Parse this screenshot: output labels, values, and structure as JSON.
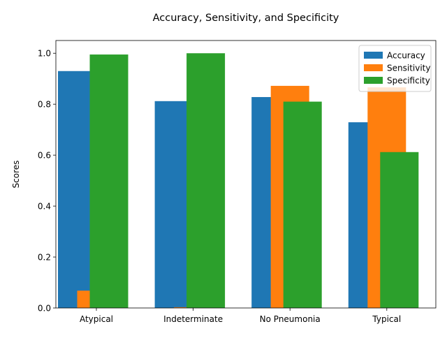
{
  "chart_data": {
    "type": "bar",
    "title": "Accuracy, Sensitivity, and Specificity",
    "xlabel": "",
    "ylabel": "Scores",
    "categories": [
      "Atypical",
      "Indeterminate",
      "No Pneumonia",
      "Typical"
    ],
    "series": [
      {
        "name": "Accuracy",
        "color": "#1f77b4",
        "values": [
          0.93,
          0.812,
          0.828,
          0.729
        ]
      },
      {
        "name": "Sensitivity",
        "color": "#ff7f0e",
        "values": [
          0.068,
          0.003,
          0.872,
          0.866
        ]
      },
      {
        "name": "Specificity",
        "color": "#2ca02c",
        "values": [
          0.995,
          1.0,
          0.81,
          0.612
        ]
      }
    ],
    "ylim": [
      0,
      1.05
    ],
    "yticks": [
      "0.0",
      "0.2",
      "0.4",
      "0.6",
      "0.8",
      "1.0"
    ],
    "grid": false,
    "legend_position": "top-right"
  }
}
